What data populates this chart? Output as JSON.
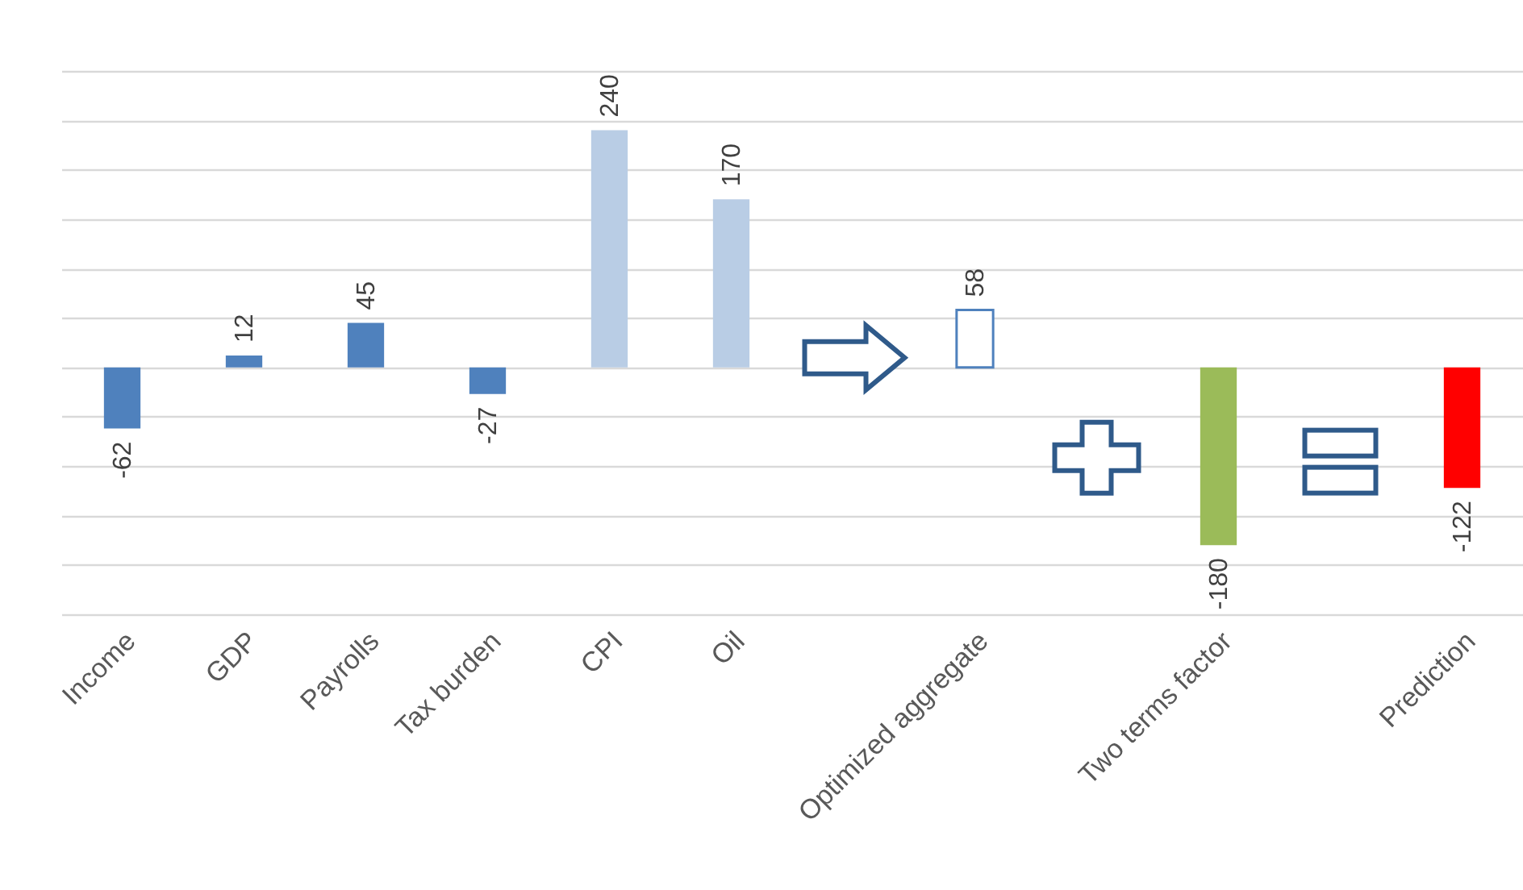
{
  "chart_data": {
    "type": "bar",
    "categories": [
      "Income",
      "GDP",
      "Payrolls",
      "Tax burden",
      "CPI",
      "Oil",
      null,
      "Optimized aggregate",
      null,
      "Two terms factor",
      null,
      "Prediction"
    ],
    "values": [
      -62,
      12,
      45,
      -27,
      240,
      170,
      null,
      58,
      null,
      -180,
      null,
      -122
    ],
    "colors": [
      "#4f81bd",
      "#4f81bd",
      "#4f81bd",
      "#4f81bd",
      "#b9cde5",
      "#b9cde5",
      null,
      "#ffffff",
      null,
      "#9bbb59",
      null,
      "#ff0000"
    ],
    "ylim": [
      -250,
      300
    ],
    "yticks": [
      {
        "value": -250,
        "label": null
      },
      {
        "value": -200,
        "label": null
      },
      {
        "value": -150,
        "label": null
      },
      {
        "value": -100,
        "label": null
      },
      {
        "value": -50,
        "label": null
      },
      {
        "value": 0,
        "label": null
      },
      {
        "value": 50,
        "label": null
      },
      {
        "value": 100,
        "label": null
      },
      {
        "value": 150,
        "label": null
      },
      {
        "value": 200,
        "label": null
      },
      {
        "value": 250,
        "label": null
      },
      {
        "value": 300,
        "label": null
      }
    ],
    "grid": true,
    "tick_labels": "x",
    "data_labels": true
  }
}
